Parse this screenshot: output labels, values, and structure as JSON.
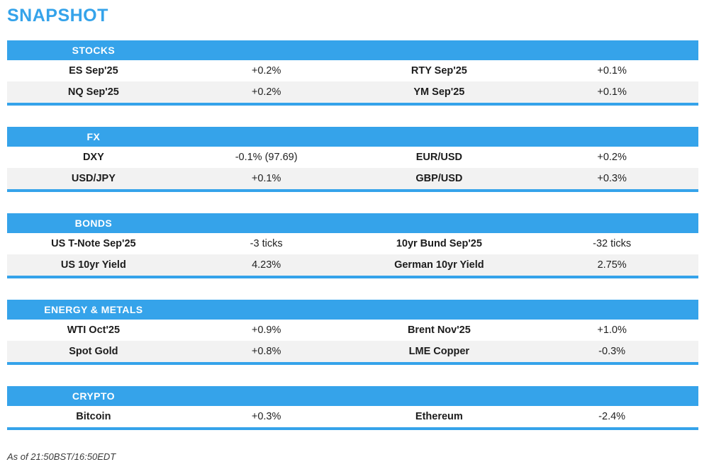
{
  "page_title": "SNAPSHOT",
  "colors": {
    "accent": "#35a3ea",
    "row_alt": "#f2f2f2",
    "text": "#1c1c1c"
  },
  "sections": [
    {
      "title": "STOCKS",
      "rows": [
        {
          "label1": "ES Sep'25",
          "value1": "+0.2%",
          "label2": "RTY Sep'25",
          "value2": "+0.1%"
        },
        {
          "label1": "NQ Sep'25",
          "value1": "+0.2%",
          "label2": "YM Sep'25",
          "value2": "+0.1%"
        }
      ]
    },
    {
      "title": "FX",
      "rows": [
        {
          "label1": "DXY",
          "value1": "-0.1% (97.69)",
          "label2": "EUR/USD",
          "value2": "+0.2%"
        },
        {
          "label1": "USD/JPY",
          "value1": "+0.1%",
          "label2": "GBP/USD",
          "value2": "+0.3%"
        }
      ]
    },
    {
      "title": "BONDS",
      "rows": [
        {
          "label1": "US T-Note Sep'25",
          "value1": "-3 ticks",
          "label2": "10yr Bund Sep'25",
          "value2": "-32 ticks"
        },
        {
          "label1": "US 10yr Yield",
          "value1": "4.23%",
          "label2": "German 10yr Yield",
          "value2": "2.75%"
        }
      ]
    },
    {
      "title": "ENERGY & METALS",
      "rows": [
        {
          "label1": "WTI Oct'25",
          "value1": "+0.9%",
          "label2": "Brent Nov'25",
          "value2": "+1.0%"
        },
        {
          "label1": "Spot Gold",
          "value1": "+0.8%",
          "label2": "LME Copper",
          "value2": "-0.3%"
        }
      ]
    },
    {
      "title": "CRYPTO",
      "rows": [
        {
          "label1": "Bitcoin",
          "value1": "+0.3%",
          "label2": "Ethereum",
          "value2": "-2.4%"
        }
      ]
    }
  ],
  "footer": {
    "as_of": "As of 21:50BST/16:50EDT"
  }
}
